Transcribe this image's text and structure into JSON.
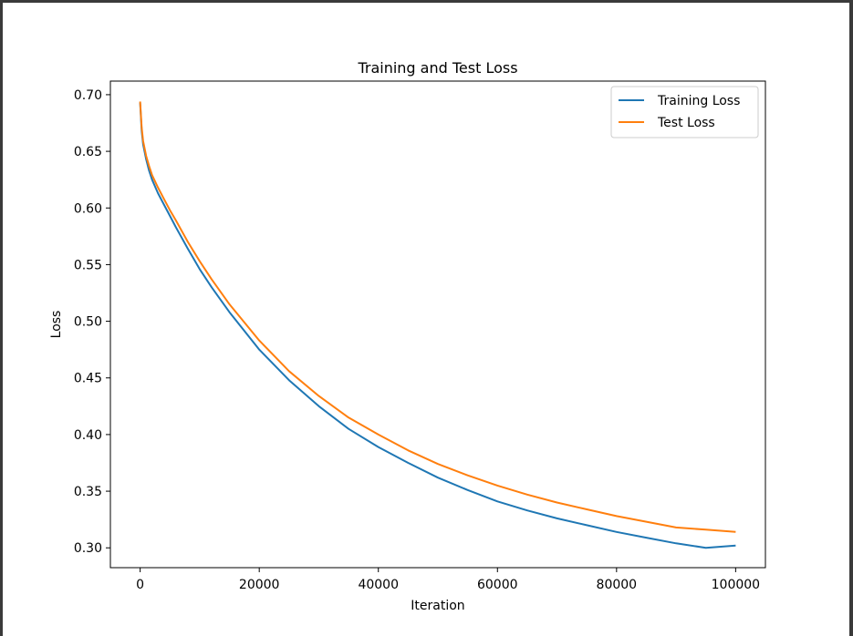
{
  "chart_data": {
    "type": "line",
    "title": "Training and Test Loss",
    "xlabel": "Iteration",
    "ylabel": "Loss",
    "xlim": [
      -5000,
      105000
    ],
    "ylim": [
      0.2825,
      0.712
    ],
    "xticks": [
      0,
      20000,
      40000,
      60000,
      80000,
      100000
    ],
    "xtick_labels": [
      "0",
      "20000",
      "40000",
      "60000",
      "80000",
      "100000"
    ],
    "yticks": [
      0.3,
      0.35,
      0.4,
      0.45,
      0.5,
      0.55,
      0.6,
      0.65,
      0.7
    ],
    "ytick_labels": [
      "0.30",
      "0.35",
      "0.40",
      "0.45",
      "0.50",
      "0.55",
      "0.60",
      "0.65",
      "0.70"
    ],
    "grid": false,
    "legend_position": "top-right",
    "series": [
      {
        "name": "Training Loss",
        "color": "#1f77b4",
        "x": [
          0,
          250,
          500,
          1000,
          1500,
          2000,
          3000,
          4000,
          5000,
          6000,
          8000,
          10000,
          12000,
          15000,
          20000,
          25000,
          30000,
          35000,
          40000,
          45000,
          50000,
          55000,
          60000,
          65000,
          70000,
          75000,
          80000,
          85000,
          90000,
          95000,
          100000
        ],
        "y": [
          0.693,
          0.668,
          0.656,
          0.643,
          0.633,
          0.625,
          0.613,
          0.603,
          0.593,
          0.583,
          0.564,
          0.546,
          0.53,
          0.508,
          0.475,
          0.448,
          0.425,
          0.405,
          0.389,
          0.375,
          0.362,
          0.351,
          0.341,
          0.333,
          0.326,
          0.32,
          0.314,
          0.309,
          0.304,
          0.3,
          0.302
        ]
      },
      {
        "name": "Test Loss",
        "color": "#ff7f0e",
        "x": [
          0,
          250,
          500,
          1000,
          1500,
          2000,
          3000,
          4000,
          5000,
          6000,
          8000,
          10000,
          12000,
          15000,
          20000,
          25000,
          30000,
          35000,
          40000,
          45000,
          50000,
          55000,
          60000,
          65000,
          70000,
          75000,
          80000,
          85000,
          90000,
          95000,
          100000
        ],
        "y": [
          0.694,
          0.671,
          0.659,
          0.646,
          0.637,
          0.629,
          0.618,
          0.608,
          0.598,
          0.589,
          0.57,
          0.553,
          0.537,
          0.515,
          0.483,
          0.456,
          0.434,
          0.415,
          0.4,
          0.386,
          0.374,
          0.364,
          0.355,
          0.347,
          0.34,
          0.334,
          0.328,
          0.323,
          0.318,
          0.316,
          0.314
        ]
      }
    ]
  }
}
